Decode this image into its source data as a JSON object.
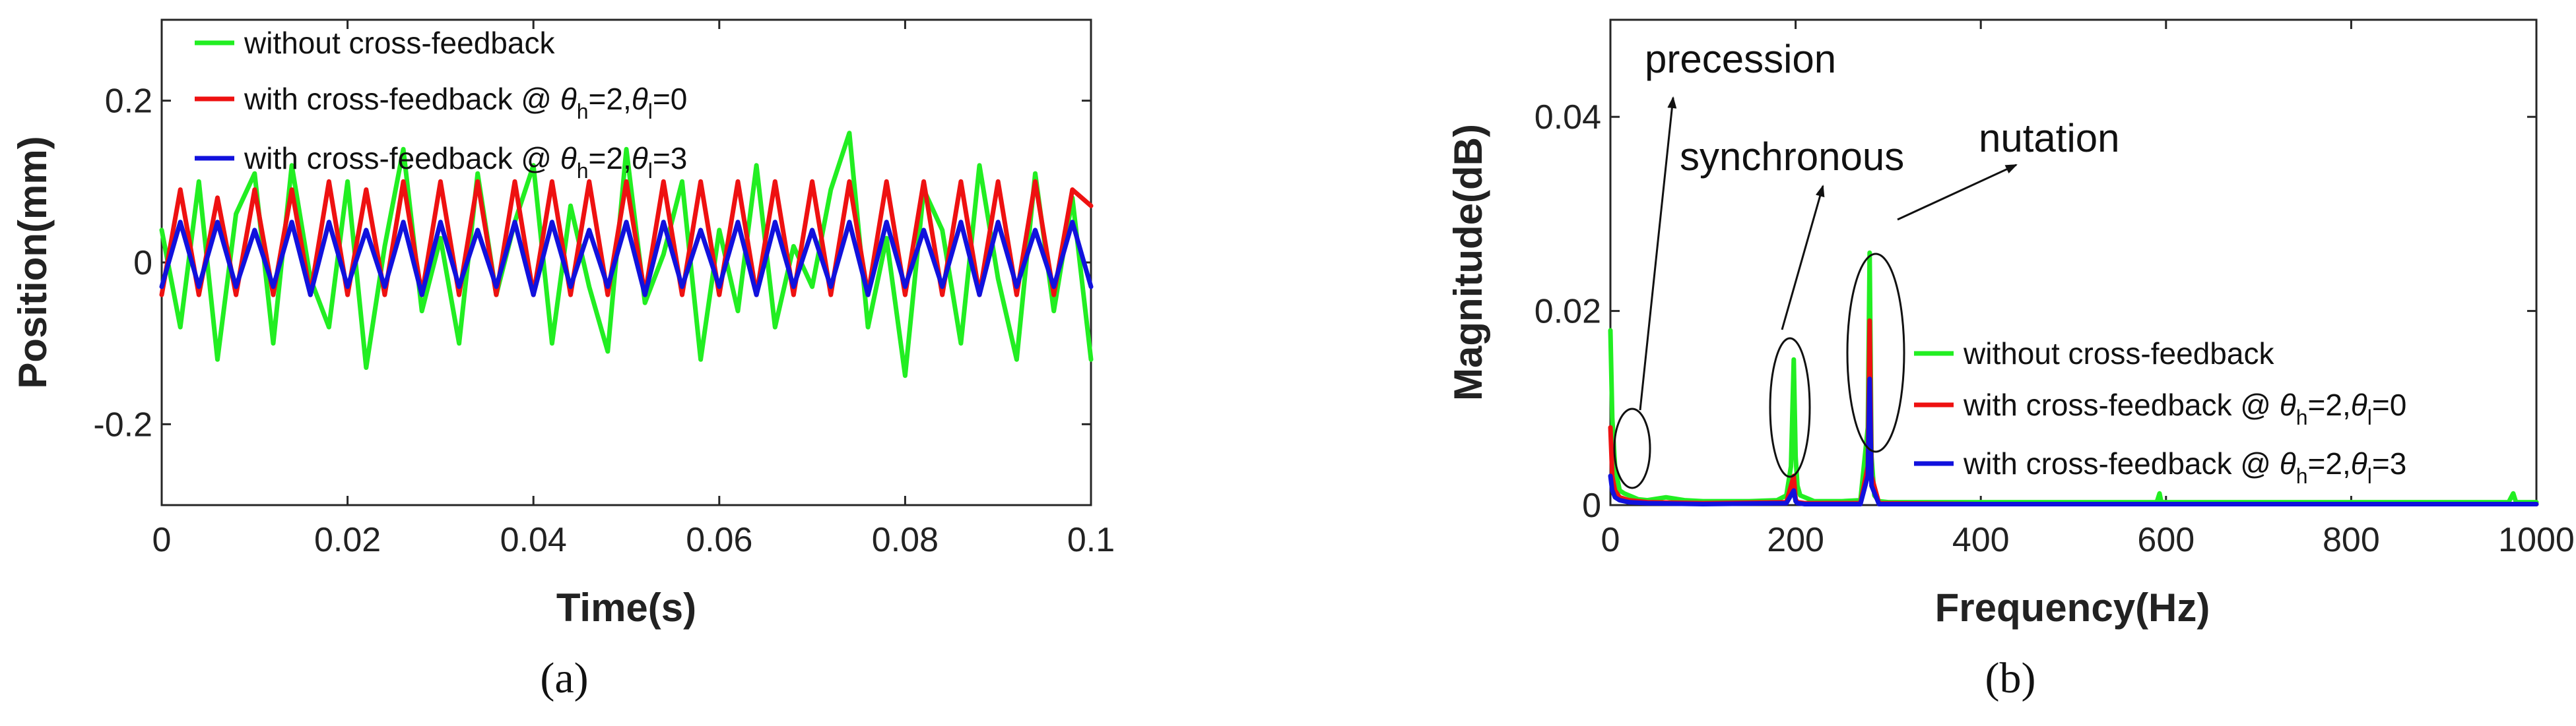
{
  "chart_data": [
    {
      "id": "a",
      "type": "line",
      "caption": "(a)",
      "xlabel": "Time(s)",
      "ylabel": "Position(mm)",
      "xlim": [
        0,
        0.1
      ],
      "ylim": [
        -0.3,
        0.3
      ],
      "xticks": [
        "0",
        "0.02",
        "0.04",
        "0.06",
        "0.08",
        "0.1"
      ],
      "xtick_values": [
        0,
        0.02,
        0.04,
        0.06,
        0.08,
        0.1
      ],
      "yticks": [
        "-0.2",
        "0",
        "0.2"
      ],
      "ytick_values": [
        -0.2,
        0,
        0.2
      ],
      "grid": false,
      "legend_position": "top-left",
      "series": [
        {
          "name": "without cross-feedback",
          "color": "#22ee22",
          "x": [
            0,
            0.002,
            0.004,
            0.006,
            0.008,
            0.01,
            0.012,
            0.014,
            0.016,
            0.018,
            0.02,
            0.022,
            0.024,
            0.026,
            0.028,
            0.03,
            0.032,
            0.034,
            0.036,
            0.038,
            0.04,
            0.042,
            0.044,
            0.046,
            0.048,
            0.05,
            0.052,
            0.054,
            0.056,
            0.058,
            0.06,
            0.062,
            0.064,
            0.066,
            0.068,
            0.07,
            0.072,
            0.074,
            0.076,
            0.078,
            0.08,
            0.082,
            0.084,
            0.086,
            0.088,
            0.09,
            0.092,
            0.094,
            0.096,
            0.098,
            0.1
          ],
          "y": [
            0.04,
            -0.08,
            0.1,
            -0.12,
            0.06,
            0.11,
            -0.1,
            0.12,
            -0.02,
            -0.08,
            0.1,
            -0.13,
            0.02,
            0.14,
            -0.06,
            0.03,
            -0.1,
            0.11,
            -0.04,
            0.05,
            0.12,
            -0.1,
            0.07,
            -0.03,
            -0.11,
            0.14,
            -0.05,
            0.01,
            0.1,
            -0.12,
            0.04,
            -0.06,
            0.12,
            -0.08,
            0.02,
            -0.03,
            0.09,
            0.16,
            -0.08,
            0.03,
            -0.14,
            0.09,
            0.04,
            -0.1,
            0.12,
            -0.02,
            -0.12,
            0.11,
            -0.06,
            0.08,
            -0.12
          ]
        },
        {
          "name": "with cross-feedback @ θh=2,θl=0",
          "color": "#ee1111",
          "x": [
            0,
            0.002,
            0.004,
            0.006,
            0.008,
            0.01,
            0.012,
            0.014,
            0.016,
            0.018,
            0.02,
            0.022,
            0.024,
            0.026,
            0.028,
            0.03,
            0.032,
            0.034,
            0.036,
            0.038,
            0.04,
            0.042,
            0.044,
            0.046,
            0.048,
            0.05,
            0.052,
            0.054,
            0.056,
            0.058,
            0.06,
            0.062,
            0.064,
            0.066,
            0.068,
            0.07,
            0.072,
            0.074,
            0.076,
            0.078,
            0.08,
            0.082,
            0.084,
            0.086,
            0.088,
            0.09,
            0.092,
            0.094,
            0.096,
            0.098,
            0.1
          ],
          "y": [
            -0.04,
            0.09,
            -0.04,
            0.08,
            -0.04,
            0.09,
            -0.04,
            0.09,
            -0.04,
            0.1,
            -0.04,
            0.09,
            -0.04,
            0.1,
            -0.04,
            0.1,
            -0.04,
            0.1,
            -0.04,
            0.1,
            -0.04,
            0.1,
            -0.04,
            0.1,
            -0.04,
            0.1,
            -0.04,
            0.1,
            -0.04,
            0.1,
            -0.04,
            0.1,
            -0.04,
            0.1,
            -0.04,
            0.1,
            -0.04,
            0.1,
            -0.04,
            0.1,
            -0.04,
            0.1,
            -0.04,
            0.1,
            -0.04,
            0.1,
            -0.04,
            0.1,
            -0.04,
            0.09,
            0.07
          ]
        },
        {
          "name": "with cross-feedback @ θh=2,θl=3",
          "color": "#1111dd",
          "x": [
            0,
            0.002,
            0.004,
            0.006,
            0.008,
            0.01,
            0.012,
            0.014,
            0.016,
            0.018,
            0.02,
            0.022,
            0.024,
            0.026,
            0.028,
            0.03,
            0.032,
            0.034,
            0.036,
            0.038,
            0.04,
            0.042,
            0.044,
            0.046,
            0.048,
            0.05,
            0.052,
            0.054,
            0.056,
            0.058,
            0.06,
            0.062,
            0.064,
            0.066,
            0.068,
            0.07,
            0.072,
            0.074,
            0.076,
            0.078,
            0.08,
            0.082,
            0.084,
            0.086,
            0.088,
            0.09,
            0.092,
            0.094,
            0.096,
            0.098,
            0.1
          ],
          "y": [
            -0.03,
            0.05,
            -0.03,
            0.05,
            -0.03,
            0.04,
            -0.03,
            0.05,
            -0.04,
            0.05,
            -0.03,
            0.04,
            -0.03,
            0.05,
            -0.04,
            0.05,
            -0.03,
            0.04,
            -0.03,
            0.05,
            -0.04,
            0.05,
            -0.03,
            0.04,
            -0.03,
            0.05,
            -0.04,
            0.05,
            -0.03,
            0.04,
            -0.03,
            0.05,
            -0.04,
            0.05,
            -0.03,
            0.04,
            -0.03,
            0.05,
            -0.04,
            0.05,
            -0.03,
            0.04,
            -0.03,
            0.05,
            -0.04,
            0.05,
            -0.03,
            0.04,
            -0.03,
            0.05,
            -0.03
          ]
        }
      ]
    },
    {
      "id": "b",
      "type": "line",
      "caption": "(b)",
      "xlabel": "Frequency(Hz)",
      "ylabel": "Magnitude(dB)",
      "xlim": [
        0,
        1000
      ],
      "ylim": [
        0,
        0.05
      ],
      "xticks": [
        "0",
        "200",
        "400",
        "600",
        "800",
        "1000"
      ],
      "xtick_values": [
        0,
        200,
        400,
        600,
        800,
        1000
      ],
      "yticks": [
        "0",
        "0.02",
        "0.04"
      ],
      "ytick_values": [
        0,
        0.02,
        0.04
      ],
      "grid": false,
      "legend_position": "right",
      "annotations": [
        "precession",
        "synchronous",
        "nutation"
      ],
      "series": [
        {
          "name": "without cross-feedback",
          "color": "#22ee22",
          "x": [
            0,
            2,
            5,
            10,
            15,
            20,
            25,
            30,
            40,
            60,
            80,
            100,
            150,
            180,
            190,
            195,
            198,
            200,
            202,
            205,
            210,
            220,
            250,
            270,
            278,
            280,
            282,
            285,
            290,
            300,
            400,
            500,
            590,
            593,
            595,
            600,
            700,
            800,
            900,
            970,
            975,
            978,
            980,
            1000
          ],
          "y": [
            0.018,
            0.009,
            0.004,
            0.0015,
            0.0012,
            0.001,
            0.0008,
            0.0006,
            0.0005,
            0.0008,
            0.0005,
            0.0004,
            0.0004,
            0.0005,
            0.001,
            0.004,
            0.015,
            0.005,
            0.002,
            0.001,
            0.0008,
            0.0004,
            0.0004,
            0.0005,
            0.008,
            0.026,
            0.005,
            0.001,
            0.0004,
            0.0003,
            0.0003,
            0.0003,
            0.0003,
            0.0012,
            0.0003,
            0.0003,
            0.0003,
            0.0003,
            0.0003,
            0.0003,
            0.0012,
            0.0003,
            0.0003,
            0.0003
          ]
        },
        {
          "name": "with cross-feedback @ θh=2,θl=0",
          "color": "#ee1111",
          "x": [
            0,
            2,
            5,
            10,
            20,
            40,
            100,
            190,
            198,
            200,
            202,
            210,
            270,
            278,
            280,
            282,
            290,
            400,
            600,
            800,
            1000
          ],
          "y": [
            0.008,
            0.003,
            0.0015,
            0.0008,
            0.0005,
            0.0003,
            0.0002,
            0.0003,
            0.003,
            0.0006,
            0.0003,
            0.0002,
            0.0002,
            0.004,
            0.019,
            0.003,
            0.0002,
            0.0001,
            0.0001,
            0.0001,
            0.0001
          ]
        },
        {
          "name": "with cross-feedback @ θh=2,θl=3",
          "color": "#1111dd",
          "x": [
            0,
            2,
            5,
            10,
            20,
            40,
            100,
            190,
            198,
            200,
            202,
            210,
            270,
            278,
            280,
            282,
            290,
            400,
            600,
            800,
            1000
          ],
          "y": [
            0.003,
            0.0015,
            0.0008,
            0.0005,
            0.0003,
            0.0002,
            0.0001,
            0.0002,
            0.0015,
            0.0004,
            0.0002,
            0.0001,
            0.0001,
            0.003,
            0.013,
            0.002,
            0.0001,
            0.0001,
            0.0001,
            0.0001,
            0.0001
          ]
        }
      ]
    }
  ]
}
